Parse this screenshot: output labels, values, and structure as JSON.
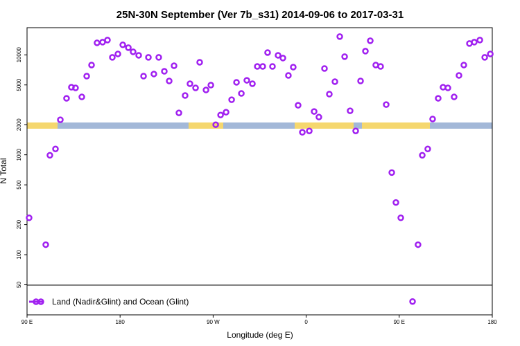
{
  "chart_data": {
    "type": "scatter",
    "title": "25N-30N September (Ver 7b_s31)   2014-09-06 to 2017-03-31",
    "xlabel": "Longitude (deg E)",
    "ylabel": "N Total",
    "xlim": [
      90,
      540
    ],
    "xticks": [
      {
        "value": 90,
        "label": "90 E"
      },
      {
        "value": 180,
        "label": "180"
      },
      {
        "value": 270,
        "label": "90 W"
      },
      {
        "value": 360,
        "label": "0"
      },
      {
        "value": 450,
        "label": "90 E"
      },
      {
        "value": 540,
        "label": "180"
      }
    ],
    "ylim": [
      25,
      18700
    ],
    "log_y": true,
    "yticks": [
      50,
      100,
      200,
      500,
      1000,
      2000,
      5000,
      10000
    ],
    "legend": "bottom-left",
    "series": [
      {
        "name": "Land (Nadir&Glint) and Ocean (Glint)",
        "color": "#a020f0",
        "x": [
          92.0,
          108.1,
          112.1,
          117.5,
          122.2,
          128.2,
          132.9,
          136.9,
          143.0,
          147.7,
          152.4,
          157.7,
          163.1,
          167.8,
          172.5,
          177.9,
          182.6,
          188.0,
          192.6,
          198.0,
          202.7,
          207.4,
          212.7,
          217.4,
          222.8,
          227.5,
          232.2,
          236.9,
          242.9,
          247.6,
          253.0,
          257.0,
          263.1,
          267.8,
          272.5,
          277.2,
          282.5,
          287.9,
          292.6,
          297.3,
          302.6,
          308.0,
          312.7,
          318.0,
          322.7,
          327.4,
          332.8,
          337.5,
          342.8,
          347.5,
          352.2,
          356.3,
          363.0,
          367.7,
          372.3,
          377.7,
          382.4,
          387.8,
          392.5,
          397.2,
          402.5,
          407.9,
          412.6,
          417.3,
          422.0,
          427.3,
          432.0,
          437.4,
          442.8,
          446.8,
          451.5,
          462.9,
          468.2,
          472.3,
          477.6,
          482.3,
          487.7,
          492.4,
          497.1,
          503.1,
          507.8,
          512.5,
          517.9,
          522.6,
          528.0,
          532.7,
          538.1
        ],
        "values": [
          234,
          126,
          989,
          1143,
          2239,
          3673,
          4742,
          4667,
          3793,
          6124,
          7910,
          13183,
          13400,
          14060,
          9440,
          10210,
          12590,
          11800,
          10720,
          9890,
          6124,
          9440,
          6430,
          9440,
          6850,
          5480,
          7780,
          2624,
          3917,
          5140,
          4667,
          8430,
          4450,
          4980,
          2000,
          2500,
          2667,
          3556,
          5310,
          4108,
          5560,
          5140,
          7660,
          7660,
          10540,
          7660,
          9890,
          9290,
          6220,
          7540,
          3128,
          1679,
          1732,
          2710,
          2384,
          7302,
          4046,
          5395,
          15240,
          9590,
          2754,
          1732,
          5480,
          10890,
          13840,
          7910,
          7660,
          3177,
          664,
          333,
          234,
          34,
          126,
          989,
          1143,
          2280,
          3673,
          4742,
          4667,
          3793,
          6220,
          7910,
          12990,
          13400,
          14060,
          9440,
          10210
        ]
      }
    ]
  }
}
